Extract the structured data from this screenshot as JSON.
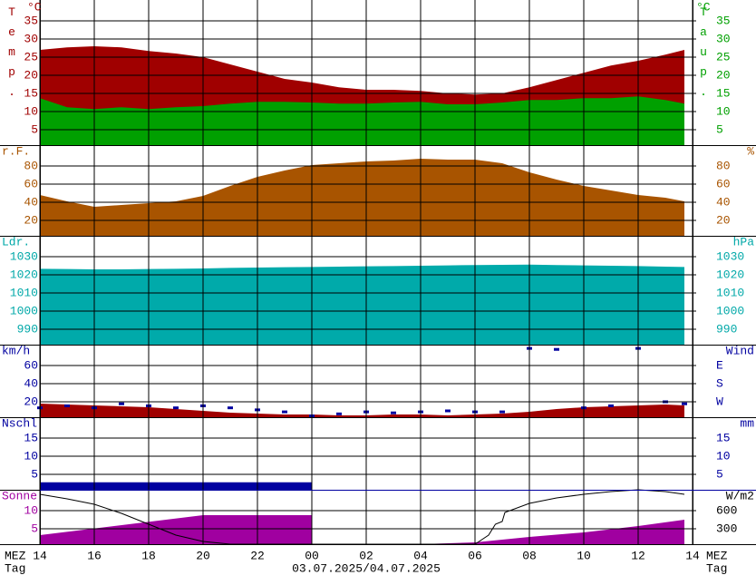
{
  "chart_data": [
    {
      "type": "area",
      "ylabel": "Temp.",
      "yunit": "°C",
      "y2label": "Taup.",
      "y2unit": "°C",
      "label_color": "#a00000",
      "label2_color": "#00a000",
      "ylim": [
        0.75,
        40.75
      ],
      "yticks": [
        35,
        30,
        25,
        20,
        15,
        10,
        5
      ],
      "y2lim": [
        0.75,
        40.75
      ],
      "y2ticks": [
        35,
        30,
        25,
        20,
        15,
        10,
        5
      ],
      "x": [
        14,
        15,
        16,
        17,
        18,
        19,
        20,
        21,
        22,
        23,
        24,
        25,
        26,
        27,
        28,
        29,
        30,
        31,
        32,
        33,
        34,
        35,
        36,
        37,
        37.7
      ],
      "series": [
        {
          "color": "#a00000",
          "values": [
            27,
            27.7,
            28,
            27.7,
            26.7,
            26,
            25,
            23,
            21,
            19,
            18,
            16.7,
            16,
            16,
            15.7,
            15,
            14.7,
            15,
            16.7,
            18.7,
            20.7,
            22.7,
            24,
            25.7,
            27
          ]
        },
        {
          "color": "#00a000",
          "axis": "y2",
          "values": [
            13.7,
            11.2,
            10.7,
            11.2,
            10.7,
            11.2,
            11.5,
            12.2,
            12.7,
            12.7,
            12.5,
            12.2,
            12.2,
            12.5,
            12.7,
            12,
            12,
            12.5,
            13.2,
            13.2,
            13.7,
            13.7,
            14.2,
            13.2,
            12.2
          ]
        }
      ]
    },
    {
      "type": "area",
      "ylabel": "r.F.",
      "y2label": "%",
      "label_color": "#a85400",
      "label2_color": "#a85400",
      "ylim": [
        3,
        103
      ],
      "yticks": [
        80,
        60,
        40,
        20
      ],
      "y2lim": [
        3,
        103
      ],
      "y2ticks": [
        80,
        60,
        40,
        20
      ],
      "x": [
        14,
        15,
        16,
        17,
        18,
        19,
        20,
        21,
        22,
        23,
        24,
        25,
        26,
        27,
        28,
        29,
        30,
        31,
        32,
        33,
        34,
        35,
        36,
        37,
        37.7
      ],
      "series": [
        {
          "color": "#a85400",
          "values": [
            48,
            41,
            35,
            37,
            39,
            41,
            47,
            58,
            68,
            75,
            81,
            83,
            85,
            86,
            88,
            87,
            87,
            83,
            73,
            65,
            58,
            53,
            48,
            45,
            41
          ]
        }
      ]
    },
    {
      "type": "area",
      "ylabel": "Ldr.",
      "y2label": "hPa",
      "label_color": "#00a8a8",
      "label2_color": "#00a8a8",
      "ylim": [
        981.5,
        1041.5
      ],
      "yticks": [
        1030,
        1020,
        1010,
        1000,
        990
      ],
      "y2lim": [
        981.5,
        1041.5
      ],
      "y2ticks": [
        1030,
        1020,
        1010,
        1000,
        990
      ],
      "x": [
        14,
        15,
        16,
        17,
        18,
        19,
        20,
        21,
        22,
        23,
        24,
        25,
        26,
        27,
        28,
        29,
        30,
        31,
        32,
        33,
        34,
        35,
        36,
        37,
        37.7
      ],
      "series": [
        {
          "color": "#00aaaa",
          "values": [
            1023.3,
            1023.2,
            1023,
            1023,
            1023.2,
            1023.3,
            1023.5,
            1023.8,
            1024,
            1024.2,
            1024.3,
            1024.5,
            1024.7,
            1024.8,
            1025,
            1025.2,
            1025.4,
            1025.5,
            1025.6,
            1025.4,
            1025.2,
            1025,
            1024.8,
            1024.5,
            1024.3
          ]
        }
      ]
    },
    {
      "type": "area",
      "ylabel": "km/h",
      "y2label": "Wind",
      "label_color": "#0000a0",
      "label2_color": "#0000a0",
      "ylim": [
        3,
        83
      ],
      "yticks": [
        60,
        40,
        20
      ],
      "y2lim": [
        346.5,
        -13.5
      ],
      "y2ticks": [
        {
          "value": 90,
          "label": "E"
        },
        {
          "value": 180,
          "label": "S"
        },
        {
          "value": 270,
          "label": "W"
        }
      ],
      "x": [
        14,
        15,
        16,
        17,
        18,
        19,
        20,
        21,
        22,
        23,
        24,
        25,
        26,
        27,
        28,
        29,
        30,
        31,
        32,
        33,
        34,
        35,
        36,
        37,
        37.7
      ],
      "series": [
        {
          "color": "#a00000",
          "values": [
            18,
            17,
            16,
            15,
            14,
            12,
            10,
            8,
            7,
            6,
            6,
            5,
            5,
            6,
            6,
            5,
            6,
            7,
            9,
            12,
            14,
            15,
            16,
            17,
            16
          ]
        },
        {
          "type": "scatter",
          "color": "#0000a0",
          "axis": "y2",
          "values": [
            300,
            290,
            300,
            280,
            290,
            300,
            290,
            300,
            310,
            320,
            340,
            330,
            320,
            325,
            320,
            315,
            320,
            320,
            5,
            10,
            300,
            290,
            5,
            270,
            280
          ]
        }
      ]
    },
    {
      "type": "area",
      "ylabel": "Nschl",
      "y2label": "mm",
      "label_color": "#0000a0",
      "label2_color": "#0000a0",
      "ylim": [
        0.75,
        20.75
      ],
      "yticks": [
        15,
        10,
        5
      ],
      "y2lim": [
        0.75,
        20.75
      ],
      "y2ticks": [
        15,
        10,
        5
      ],
      "series": [
        {
          "color": "#0000a0",
          "x": [
            14,
            24
          ],
          "values": [
            2.8,
            2.8
          ]
        }
      ]
    },
    {
      "type": "area",
      "ylabel": "Sonne",
      "y2label": "W/m2",
      "label_color": "#a000a0",
      "label2_color": "#000000",
      "ylim": [
        0.75,
        15.75
      ],
      "yticks": [
        10,
        5
      ],
      "y2lim": [
        45,
        945
      ],
      "y2ticks": [
        600,
        300
      ],
      "series": [
        {
          "color": "#a000a0",
          "x": [
            14,
            20,
            24,
            25,
            28,
            30,
            32,
            34,
            36,
            37.7
          ],
          "values": [
            3.25,
            8.75,
            8.75,
            null,
            0,
            1.25,
            2.75,
            4,
            5.75,
            7.5
          ]
        },
        {
          "type": "line",
          "color": "#000000",
          "axis": "y2",
          "x": [
            14,
            15,
            16,
            17,
            18,
            19,
            20,
            21,
            22,
            30,
            30.5,
            30.75,
            31,
            31.1,
            32,
            33,
            34,
            35,
            36,
            37,
            37.7
          ],
          "values": [
            870,
            795,
            705,
            555,
            375,
            195,
            90,
            0,
            0,
            0,
            195,
            375,
            420,
            570,
            720,
            810,
            870,
            915,
            945,
            915,
            870
          ]
        }
      ],
      "xlim": [
        14,
        38
      ],
      "xticks": [
        14,
        16,
        18,
        20,
        22,
        {
          "value": 24,
          "label": "00"
        },
        {
          "value": 26,
          "label": "02"
        },
        {
          "value": 28,
          "label": "04"
        },
        {
          "value": 30,
          "label": "06"
        },
        {
          "value": 32,
          "label": "08"
        },
        {
          "value": 34,
          "label": "10"
        },
        {
          "value": 36,
          "label": "12"
        },
        {
          "value": 38,
          "label": "14"
        }
      ],
      "xlabel_left": "MEZ",
      "xlabel_right": "MEZ",
      "xsub_left": "Tag",
      "xsub_right": "Tag",
      "date": "03.07.2025/04.07.2025"
    }
  ]
}
